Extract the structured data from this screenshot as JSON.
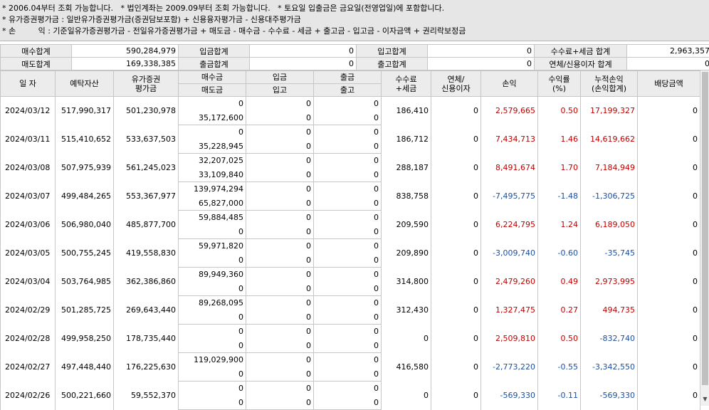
{
  "notes": [
    "* 2006.04부터 조회 가능합니다.   * 법인계좌는 2009.09부터 조회 가능합니다.   * 토요일 입출금은 금요일(전영업일)에 포함합니다.",
    "* 유가증권평가금 : 일반유가증권평가금(증권담보포함) + 신용융자평가금 - 신용대주평가금",
    "* 손         익 : 기준일유가증권평가금 - 전일유가증권평가금 + 매도금 - 매수금 - 수수료 - 세금 + 출고금 - 입고금 - 이자금액 + 권리락보정금"
  ],
  "summary": {
    "r1": [
      "매수합계",
      "590,284,979",
      "입금합계",
      "0",
      "입고합계",
      "0",
      "수수료+세금 합계",
      "2,963,357"
    ],
    "r2": [
      "매도합계",
      "169,338,385",
      "출금합계",
      "0",
      "출고합계",
      "0",
      "연체/신용이자 합계",
      "0"
    ]
  },
  "headers": {
    "date": "일 자",
    "deposit_assets": "예탁자산",
    "securities_eval_1": "유가증권",
    "securities_eval_2": "평가금",
    "buy": "매수금",
    "sell": "매도금",
    "deposit": "입금",
    "stock_in": "입고",
    "withdraw": "출금",
    "stock_out": "출고",
    "fee_1": "수수료",
    "fee_2": "+세금",
    "interest_1": "연체/",
    "interest_2": "신용이자",
    "pnl": "손익",
    "return_1": "수익률",
    "return_2": "(%)",
    "cum_1": "누적손익",
    "cum_2": "(손익합계)",
    "dividend": "배당금액"
  },
  "rows": [
    {
      "date": "2024/03/12",
      "assets": "517,990,317",
      "eval": "501,230,978",
      "buy": "0",
      "sell": "35,172,600",
      "dep": "0",
      "in": "0",
      "wd": "0",
      "out": "0",
      "fee": "186,410",
      "int": "0",
      "pnl": "2,579,665",
      "ret": "0.50",
      "cum": "17,199,327",
      "div": "0",
      "pnl_color": "red",
      "cum_color": "red"
    },
    {
      "date": "2024/03/11",
      "assets": "515,410,652",
      "eval": "533,637,503",
      "buy": "0",
      "sell": "35,228,945",
      "dep": "0",
      "in": "0",
      "wd": "0",
      "out": "0",
      "fee": "186,712",
      "int": "0",
      "pnl": "7,434,713",
      "ret": "1.46",
      "cum": "14,619,662",
      "div": "0",
      "pnl_color": "red",
      "cum_color": "red"
    },
    {
      "date": "2024/03/08",
      "assets": "507,975,939",
      "eval": "561,245,023",
      "buy": "32,207,025",
      "sell": "33,109,840",
      "dep": "0",
      "in": "0",
      "wd": "0",
      "out": "0",
      "fee": "288,187",
      "int": "0",
      "pnl": "8,491,674",
      "ret": "1.70",
      "cum": "7,184,949",
      "div": "0",
      "pnl_color": "red",
      "cum_color": "red"
    },
    {
      "date": "2024/03/07",
      "assets": "499,484,265",
      "eval": "553,367,977",
      "buy": "139,974,294",
      "sell": "65,827,000",
      "dep": "0",
      "in": "0",
      "wd": "0",
      "out": "0",
      "fee": "838,758",
      "int": "0",
      "pnl": "-7,495,775",
      "ret": "-1.48",
      "cum": "-1,306,725",
      "div": "0",
      "pnl_color": "blue",
      "cum_color": "blue"
    },
    {
      "date": "2024/03/06",
      "assets": "506,980,040",
      "eval": "485,877,700",
      "buy": "59,884,485",
      "sell": "0",
      "dep": "0",
      "in": "0",
      "wd": "0",
      "out": "0",
      "fee": "209,590",
      "int": "0",
      "pnl": "6,224,795",
      "ret": "1.24",
      "cum": "6,189,050",
      "div": "0",
      "pnl_color": "red",
      "cum_color": "red"
    },
    {
      "date": "2024/03/05",
      "assets": "500,755,245",
      "eval": "419,558,830",
      "buy": "59,971,820",
      "sell": "0",
      "dep": "0",
      "in": "0",
      "wd": "0",
      "out": "0",
      "fee": "209,890",
      "int": "0",
      "pnl": "-3,009,740",
      "ret": "-0.60",
      "cum": "-35,745",
      "div": "0",
      "pnl_color": "blue",
      "cum_color": "blue"
    },
    {
      "date": "2024/03/04",
      "assets": "503,764,985",
      "eval": "362,386,860",
      "buy": "89,949,360",
      "sell": "0",
      "dep": "0",
      "in": "0",
      "wd": "0",
      "out": "0",
      "fee": "314,800",
      "int": "0",
      "pnl": "2,479,260",
      "ret": "0.49",
      "cum": "2,973,995",
      "div": "0",
      "pnl_color": "red",
      "cum_color": "red"
    },
    {
      "date": "2024/02/29",
      "assets": "501,285,725",
      "eval": "269,643,440",
      "buy": "89,268,095",
      "sell": "0",
      "dep": "0",
      "in": "0",
      "wd": "0",
      "out": "0",
      "fee": "312,430",
      "int": "0",
      "pnl": "1,327,475",
      "ret": "0.27",
      "cum": "494,735",
      "div": "0",
      "pnl_color": "red",
      "cum_color": "red"
    },
    {
      "date": "2024/02/28",
      "assets": "499,958,250",
      "eval": "178,735,440",
      "buy": "0",
      "sell": "0",
      "dep": "0",
      "in": "0",
      "wd": "0",
      "out": "0",
      "fee": "0",
      "int": "0",
      "pnl": "2,509,810",
      "ret": "0.50",
      "cum": "-832,740",
      "div": "0",
      "pnl_color": "red",
      "cum_color": "blue"
    },
    {
      "date": "2024/02/27",
      "assets": "497,448,440",
      "eval": "176,225,630",
      "buy": "119,029,900",
      "sell": "0",
      "dep": "0",
      "in": "0",
      "wd": "0",
      "out": "0",
      "fee": "416,580",
      "int": "0",
      "pnl": "-2,773,220",
      "ret": "-0.55",
      "cum": "-3,342,550",
      "div": "0",
      "pnl_color": "blue",
      "cum_color": "blue"
    },
    {
      "date": "2024/02/26",
      "assets": "500,221,660",
      "eval": "59,552,370",
      "buy": "0",
      "sell": "0",
      "dep": "0",
      "in": "0",
      "wd": "0",
      "out": "0",
      "fee": "0",
      "int": "0",
      "pnl": "-569,330",
      "ret": "-0.11",
      "cum": "-569,330",
      "div": "0",
      "pnl_color": "blue",
      "cum_color": "blue"
    }
  ]
}
